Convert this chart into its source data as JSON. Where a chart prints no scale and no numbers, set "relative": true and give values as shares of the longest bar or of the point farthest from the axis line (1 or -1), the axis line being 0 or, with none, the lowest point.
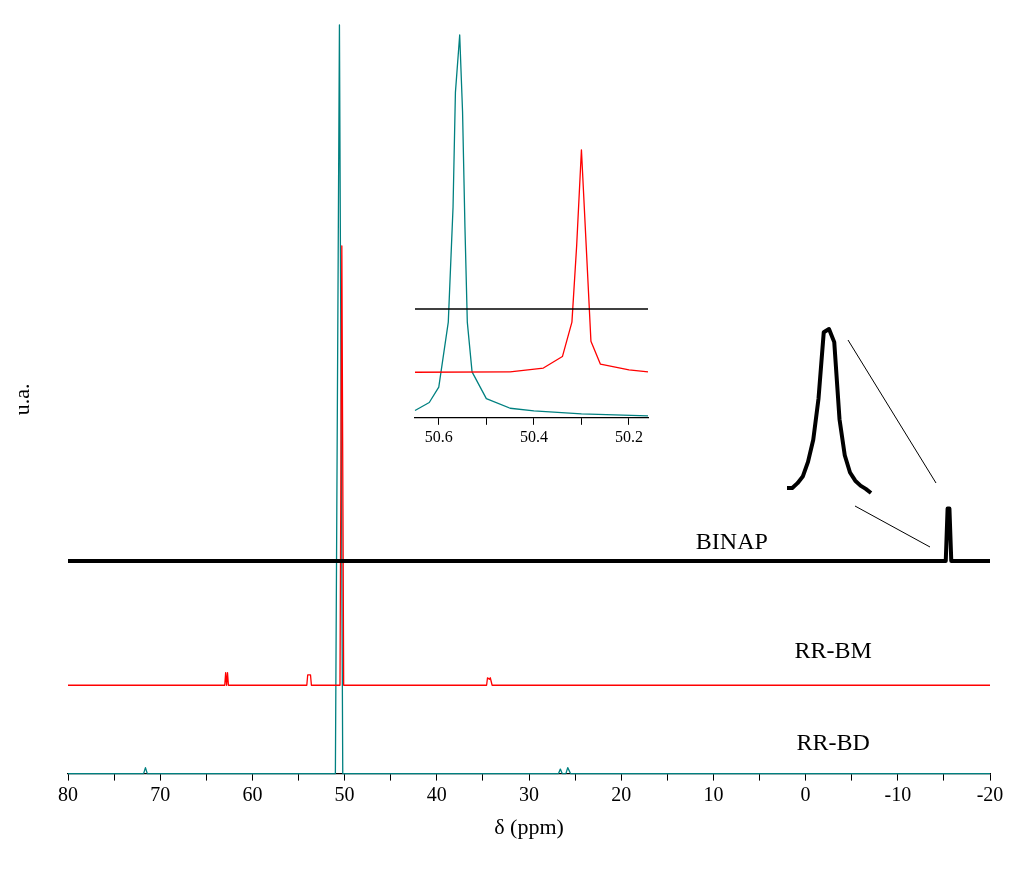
{
  "chart_data": [
    {
      "type": "line",
      "xlabel": "δ (ppm)",
      "ylabel": "u.a.",
      "relative": true,
      "xlim": [
        80,
        -20
      ],
      "xticks": [
        80,
        {
          "value": 75,
          "label": null
        },
        70,
        {
          "value": 65,
          "label": null
        },
        60,
        {
          "value": 55,
          "label": null
        },
        50,
        {
          "value": 45,
          "label": null
        },
        40,
        {
          "value": 35,
          "label": null
        },
        30,
        {
          "value": 25,
          "label": null
        },
        20,
        {
          "value": 15,
          "label": null
        },
        10,
        {
          "value": 5,
          "label": null
        },
        0,
        {
          "value": -5,
          "label": null
        },
        -10,
        {
          "value": -15,
          "label": null
        },
        -20
      ],
      "legend": false,
      "grid": false,
      "marker": "none",
      "line_style": "solid",
      "series": [
        {
          "name": "BINAP",
          "color": "#000000",
          "x": [
            80,
            -15.2,
            -15.4,
            -15.6,
            -15.8,
            -20
          ],
          "values": [
            0.284,
            0.284,
            0.354,
            0.354,
            0.284,
            0.284
          ]
        },
        {
          "name": "RR-BM",
          "color": "#ff0000",
          "x": [
            80,
            63.0,
            62.9,
            62.8,
            62.7,
            62.6,
            54.1,
            54.0,
            53.7,
            53.6,
            50.5,
            50.3,
            50.1,
            34.6,
            34.5,
            34.3,
            34.2,
            34.0,
            -20
          ],
          "values": [
            0.118,
            0.118,
            0.135,
            0.118,
            0.135,
            0.118,
            0.118,
            0.132,
            0.132,
            0.118,
            0.118,
            0.705,
            0.118,
            0.118,
            0.128,
            0.126,
            0.128,
            0.118,
            0.118
          ]
        },
        {
          "name": "RR-BD",
          "color": "#008080",
          "x": [
            80,
            71.8,
            71.6,
            71.4,
            51.0,
            50.56,
            50.2,
            26.8,
            26.6,
            26.4,
            26.0,
            25.8,
            25.5,
            -20
          ],
          "values": [
            0,
            0,
            0.008,
            0,
            0,
            1,
            0,
            0,
            0.006,
            0,
            0,
            0.008,
            0,
            0
          ]
        }
      ]
    },
    {
      "type": "line",
      "relative": true,
      "xlim": [
        50.65,
        50.16
      ],
      "xticks": [
        50.6,
        {
          "value": 50.5,
          "label": null
        },
        50.4,
        {
          "value": 50.3,
          "label": null
        },
        50.2
      ],
      "legend": false,
      "grid": false,
      "marker": "none",
      "line_style": "solid",
      "series": [
        {
          "color": "#000000",
          "x": [
            50.65,
            50.16
          ],
          "values": [
            0.284,
            0.284
          ]
        },
        {
          "color": "#ff0000",
          "x": [
            50.65,
            50.45,
            50.38,
            50.34,
            50.32,
            50.31,
            50.3,
            50.29,
            50.28,
            50.26,
            50.2,
            50.16
          ],
          "values": [
            0.119,
            0.12,
            0.13,
            0.16,
            0.25,
            0.45,
            0.7,
            0.45,
            0.2,
            0.14,
            0.125,
            0.12
          ]
        },
        {
          "color": "#008080",
          "x": [
            50.65,
            50.62,
            50.6,
            50.58,
            50.57,
            50.565,
            50.556,
            50.55,
            50.545,
            50.54,
            50.53,
            50.5,
            50.45,
            50.4,
            50.3,
            50.16
          ],
          "values": [
            0.019,
            0.04,
            0.08,
            0.25,
            0.55,
            0.85,
            1,
            0.8,
            0.5,
            0.25,
            0.12,
            0.05,
            0.025,
            0.018,
            0.01,
            0.005
          ]
        }
      ]
    },
    {
      "type": "line",
      "relative": true,
      "categories": [
        null,
        null,
        null,
        null,
        null,
        null,
        null,
        null,
        null,
        null,
        null,
        null,
        null,
        null,
        null,
        null,
        null
      ],
      "legend": false,
      "grid": false,
      "marker": "none",
      "line_style": "solid",
      "series": [
        {
          "color": "#000000",
          "values": [
            0.03,
            0.03,
            0.06,
            0.1,
            0.19,
            0.325,
            0.575,
            0.98,
            1,
            0.92,
            0.45,
            0.23,
            0.125,
            0.075,
            0.045,
            0.025,
            0
          ]
        }
      ]
    }
  ]
}
